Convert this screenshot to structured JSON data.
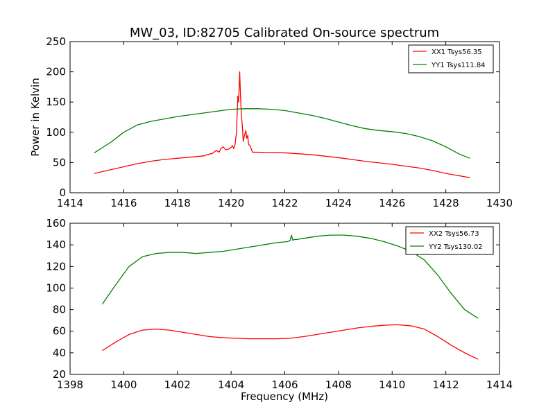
{
  "chart_data": [
    {
      "type": "line",
      "title": "MW_03, ID:82705 Calibrated On-source spectrum",
      "xlabel": "",
      "ylabel": "Power in Kelvin",
      "xlim": [
        1414,
        1430
      ],
      "ylim": [
        0,
        250
      ],
      "xticks": [
        1414,
        1416,
        1418,
        1420,
        1422,
        1424,
        1426,
        1428,
        1430
      ],
      "yticks": [
        0,
        50,
        100,
        150,
        200,
        250
      ],
      "legend_position": "top-right",
      "series": [
        {
          "name": "XX1 Tsys56.35",
          "color": "#ff0000",
          "x": [
            1414.9,
            1415.5,
            1416,
            1416.5,
            1417,
            1417.5,
            1418,
            1418.5,
            1419,
            1419.1,
            1419.3,
            1419.45,
            1419.55,
            1419.62,
            1419.7,
            1419.8,
            1419.9,
            1420.0,
            1420.05,
            1420.1,
            1420.15,
            1420.2,
            1420.25,
            1420.28,
            1420.32,
            1420.35,
            1420.38,
            1420.42,
            1420.45,
            1420.5,
            1420.55,
            1420.58,
            1420.62,
            1420.65,
            1420.7,
            1420.8,
            1421,
            1422,
            1423,
            1424,
            1425,
            1426,
            1427,
            1427.5,
            1428,
            1428.9
          ],
          "y": [
            32,
            38,
            43,
            48,
            52,
            55,
            57,
            59,
            61,
            63,
            65,
            70,
            67,
            73,
            76,
            71,
            72,
            75,
            78,
            73,
            80,
            100,
            160,
            150,
            200,
            160,
            130,
            110,
            85,
            95,
            103,
            90,
            95,
            80,
            78,
            67,
            67,
            66,
            63,
            58,
            52,
            47,
            41,
            37,
            32,
            25
          ]
        },
        {
          "name": "YY1 Tsys111.84",
          "color": "#008000",
          "x": [
            1414.9,
            1415.5,
            1416,
            1416.5,
            1417,
            1417.5,
            1418,
            1418.5,
            1419,
            1419.5,
            1420,
            1420.5,
            1421,
            1421.5,
            1422,
            1422.5,
            1423,
            1423.5,
            1424,
            1424.5,
            1425,
            1425.5,
            1426,
            1426.5,
            1427,
            1427.5,
            1428,
            1428.5,
            1428.9
          ],
          "y": [
            66,
            83,
            100,
            112,
            118,
            122,
            126,
            129,
            132,
            135,
            138,
            139,
            139,
            138,
            136,
            132,
            128,
            123,
            117,
            111,
            106,
            103,
            101,
            98,
            93,
            86,
            76,
            64,
            57
          ]
        }
      ]
    },
    {
      "type": "line",
      "title": "",
      "xlabel": "Frequency (MHz)",
      "ylabel": "",
      "xlim": [
        1398,
        1414
      ],
      "ylim": [
        20,
        160
      ],
      "xticks": [
        1398,
        1400,
        1402,
        1404,
        1406,
        1408,
        1410,
        1412,
        1414
      ],
      "yticks": [
        20,
        40,
        60,
        80,
        100,
        120,
        140,
        160
      ],
      "legend_position": "top-right",
      "series": [
        {
          "name": "XX2 Tsys56.73",
          "color": "#ff0000",
          "x": [
            1399.2,
            1399.7,
            1400.2,
            1400.7,
            1401.2,
            1401.7,
            1402.2,
            1402.7,
            1403.2,
            1403.7,
            1404.2,
            1404.7,
            1405.2,
            1405.7,
            1406.2,
            1406.7,
            1407.2,
            1407.7,
            1408.2,
            1408.7,
            1409.2,
            1409.7,
            1410.2,
            1410.7,
            1411.2,
            1411.7,
            1412.2,
            1412.7,
            1413.2
          ],
          "y": [
            42,
            50,
            57,
            61,
            62,
            61,
            59,
            57,
            55,
            54,
            53.5,
            53,
            53,
            53,
            53.5,
            55,
            57,
            59,
            61,
            63,
            64.5,
            65.5,
            66,
            65,
            62,
            55,
            47,
            40,
            34
          ]
        },
        {
          "name": "YY2 Tsys130.02",
          "color": "#008000",
          "x": [
            1399.2,
            1399.7,
            1400.2,
            1400.7,
            1401.2,
            1401.7,
            1402.2,
            1402.7,
            1403.2,
            1403.7,
            1404.2,
            1404.7,
            1405.2,
            1405.7,
            1406.1,
            1406.2,
            1406.25,
            1406.3,
            1406.35,
            1406.45,
            1406.7,
            1407.2,
            1407.7,
            1408.2,
            1408.7,
            1409.2,
            1409.7,
            1410.2,
            1410.7,
            1411.2,
            1411.7,
            1412.2,
            1412.7,
            1413.2
          ],
          "y": [
            85,
            103,
            120,
            129,
            132,
            133,
            133,
            132,
            133,
            134,
            136,
            138,
            140,
            142,
            143,
            144,
            149,
            144,
            145,
            145,
            146,
            148,
            149,
            149,
            148,
            146,
            143,
            139,
            134,
            126,
            112,
            95,
            80,
            72
          ]
        }
      ]
    }
  ]
}
